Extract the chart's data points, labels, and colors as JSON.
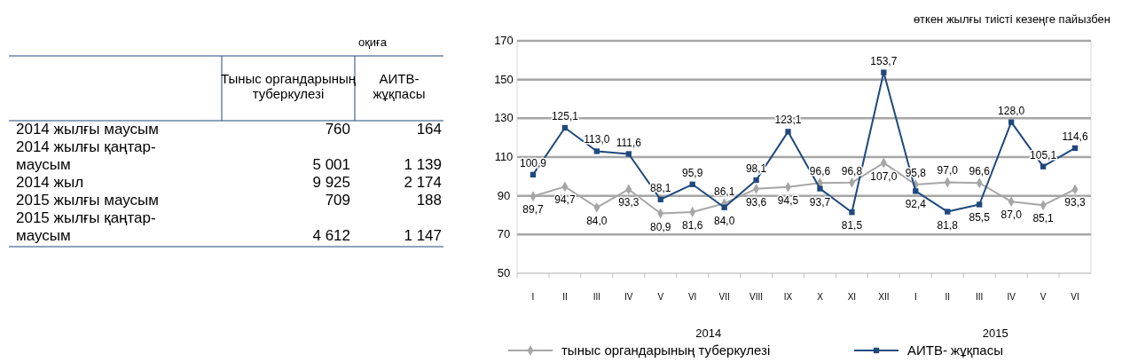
{
  "chart_data": [
    {
      "type": "other",
      "subtitle": "оқиға",
      "data_labels": true,
      "categories": [
        "2014 жылғы маусым",
        "2014 жылғы қаңтар-маусым",
        "2014 жыл",
        "2015 жылғы маусым",
        "2015 жылғы қаңтар-маусым"
      ],
      "series": [
        {
          "name": "Тыныс органдарының туберкулезі",
          "values": [
            760,
            5001,
            9925,
            709,
            4612
          ]
        },
        {
          "name": "АИТВ-жұқпасы",
          "values": [
            164,
            1139,
            2174,
            188,
            1147
          ]
        }
      ]
    },
    {
      "type": "line",
      "subtitle": "өткен жылғы тиісті кезеңге пайызбен",
      "categories": [
        "I",
        "II",
        "III",
        "IV",
        "V",
        "VI",
        "VII",
        "VIII",
        "IX",
        "X",
        "XI",
        "XII",
        "I",
        "II",
        "III",
        "IV",
        "V",
        "VI"
      ],
      "annotations": [
        "2014",
        "2015"
      ],
      "ylim": [
        50,
        170
      ],
      "yticks": [
        50,
        70,
        90,
        110,
        130,
        150,
        170
      ],
      "grid": "y",
      "legend": "bottom",
      "series": [
        {
          "name": "тыныс органдарының туберкулезі",
          "color": "#a6a6a6",
          "marker": "diamond",
          "values": [
            89.7,
            94.7,
            84.0,
            93.3,
            80.9,
            81.6,
            86.1,
            93.6,
            94.5,
            96.6,
            96.8,
            107.0,
            95.8,
            97.0,
            96.6,
            87.0,
            85.1,
            93.3
          ],
          "value_labels": [
            "89,7",
            "94,7",
            "84,0",
            "93,3",
            "80,9",
            "81,6",
            "86,1",
            "93,6",
            "94,5",
            "96,6",
            "96,8",
            "107,0",
            "95,8",
            "97,0",
            "96,6",
            "87,0",
            "85,1",
            "93,3"
          ]
        },
        {
          "name": "АИТВ- жұқпасы",
          "color": "#1f497d",
          "marker": "square",
          "values": [
            100.9,
            125.1,
            113.0,
            111.6,
            88.1,
            95.9,
            84.0,
            98.1,
            123.1,
            93.7,
            81.5,
            153.7,
            92.4,
            81.8,
            85.5,
            128.0,
            105.1,
            114.6
          ],
          "value_labels": [
            "100,9",
            "125,1",
            "113,0",
            "111,6",
            "88,1",
            "95,9",
            "84,0",
            "98,1",
            "123,1",
            "93,7",
            "81,5",
            "153,7",
            "92,4",
            "81,8",
            "85,5",
            "128,0",
            "105,1",
            "114,6"
          ]
        }
      ]
    }
  ]
}
